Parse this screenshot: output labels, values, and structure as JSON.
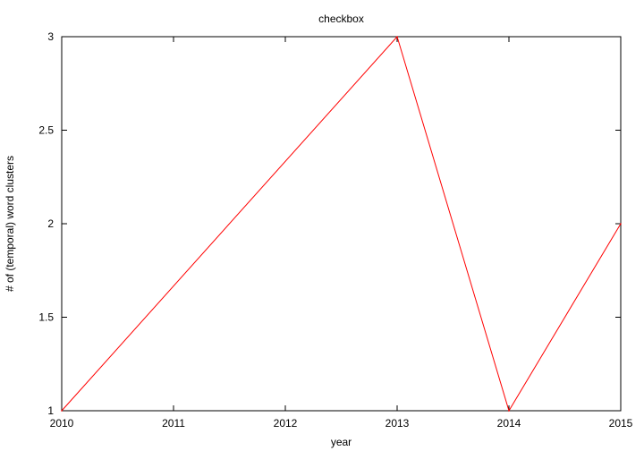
{
  "chart_data": {
    "type": "line",
    "title": "checkbox",
    "xlabel": "year",
    "ylabel": "# of (temporal) word clusters",
    "xlim": [
      2010,
      2015
    ],
    "ylim": [
      1,
      3
    ],
    "x_ticks": [
      2010,
      2011,
      2012,
      2013,
      2014,
      2015
    ],
    "y_ticks": [
      1,
      1.5,
      2,
      2.5,
      3
    ],
    "grid": false,
    "legend": "none",
    "series": [
      {
        "color": "#ff0000",
        "x": [
          2010,
          2013,
          2014,
          2015
        ],
        "y": [
          1,
          3,
          1,
          2
        ]
      }
    ]
  }
}
